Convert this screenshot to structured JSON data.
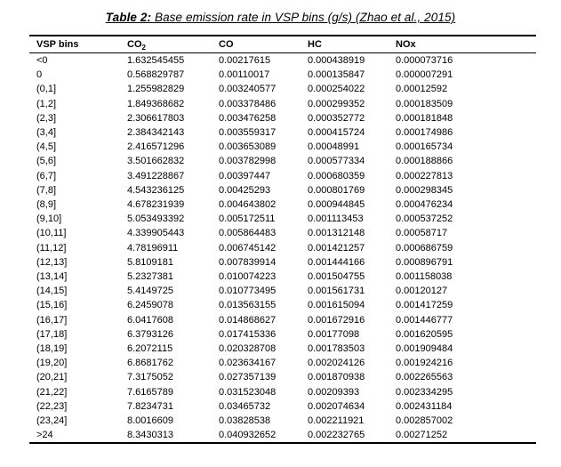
{
  "title": {
    "prefix": "Table 2:",
    "rest": " Base emission rate in VSP bins (g/s) (Zhao et al., 2015)"
  },
  "table": {
    "headers": [
      {
        "label": "VSP bins",
        "sub": ""
      },
      {
        "label": "CO",
        "sub": "2"
      },
      {
        "label": "CO",
        "sub": ""
      },
      {
        "label": "HC",
        "sub": ""
      },
      {
        "label": "NOx",
        "sub": ""
      }
    ],
    "rows": [
      [
        "<0",
        "1.632545455",
        "0.00217615",
        "0.000438919",
        "0.000073716"
      ],
      [
        "0",
        "0.568829787",
        "0.00110017",
        "0.000135847",
        "0.000007291"
      ],
      [
        "(0,1]",
        "1.255982829",
        "0.003240577",
        "0.000254022",
        "0.00012592"
      ],
      [
        "(1,2]",
        "1.849368682",
        "0.003378486",
        "0.000299352",
        "0.000183509"
      ],
      [
        "(2,3]",
        "2.306617803",
        "0.003476258",
        "0.000352772",
        "0.000181848"
      ],
      [
        "(3,4]",
        "2.384342143",
        "0.003559317",
        "0.000415724",
        "0.000174986"
      ],
      [
        "(4,5]",
        "2.416571296",
        "0.003653089",
        "0.00048991",
        "0.000165734"
      ],
      [
        "(5,6]",
        "3.501662832",
        "0.003782998",
        "0.000577334",
        "0.000188866"
      ],
      [
        "(6,7]",
        "3.491228867",
        "0.00397447",
        "0.000680359",
        "0.000227813"
      ],
      [
        "(7,8]",
        "4.543236125",
        "0.00425293",
        "0.000801769",
        "0.000298345"
      ],
      [
        "(8,9]",
        "4.678231939",
        "0.004643802",
        "0.000944845",
        "0.000476234"
      ],
      [
        "(9,10]",
        "5.053493392",
        "0.005172511",
        "0.001113453",
        "0.000537252"
      ],
      [
        "(10,11]",
        "4.339905443",
        "0.005864483",
        "0.001312148",
        "0.00058717"
      ],
      [
        "(11,12]",
        "4.78196911",
        "0.006745142",
        "0.001421257",
        "0.000686759"
      ],
      [
        "(12,13]",
        "5.8109181",
        "0.007839914",
        "0.001444166",
        "0.000896791"
      ],
      [
        "(13,14]",
        "5.2327381",
        "0.010074223",
        "0.001504755",
        "0.001158038"
      ],
      [
        "(14,15]",
        "5.4149725",
        "0.010773495",
        "0.001561731",
        "0.00120127"
      ],
      [
        "(15,16]",
        "6.2459078",
        "0.013563155",
        "0.001615094",
        "0.001417259"
      ],
      [
        "(16,17]",
        "6.0417608",
        "0.014868627",
        "0.001672916",
        "0.001446777"
      ],
      [
        "(17,18]",
        "6.3793126",
        "0.017415336",
        "0.00177098",
        "0.001620595"
      ],
      [
        "(18,19]",
        "6.2072115",
        "0.020328708",
        "0.001783503",
        "0.001909484"
      ],
      [
        "(19,20]",
        "6.8681762",
        "0.023634167",
        "0.002024126",
        "0.001924216"
      ],
      [
        "(20,21]",
        "7.3175052",
        "0.027357139",
        "0.001870938",
        "0.002265563"
      ],
      [
        "(21,22]",
        "7.6165789",
        "0.031523048",
        "0.00209393",
        "0.002334295"
      ],
      [
        "(22,23]",
        "7.8234731",
        "0.03465732",
        "0.002074634",
        "0.002431184"
      ],
      [
        "(23,24]",
        "8.0016609",
        "0.03828538",
        "0.002211921",
        "0.002857002"
      ],
      [
        ">24",
        "8.3430313",
        "0.040932652",
        "0.002232765",
        "0.00271252"
      ]
    ]
  }
}
